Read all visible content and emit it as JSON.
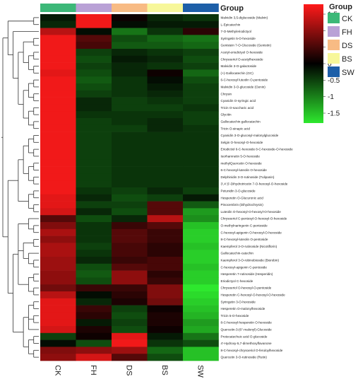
{
  "chart_data": {
    "type": "heatmap",
    "title": "",
    "group_label": "Group",
    "columns": [
      "CK",
      "FH",
      "DS",
      "BS",
      "SW"
    ],
    "group_legend": [
      {
        "name": "CK",
        "color": "#3cb878"
      },
      {
        "name": "FH",
        "color": "#b9a1d6"
      },
      {
        "name": "DS",
        "color": "#f8bb84"
      },
      {
        "name": "BS",
        "color": "#f7f79a"
      },
      {
        "name": "SW",
        "color": "#1d5fa8"
      }
    ],
    "color_scale": {
      "ticks": [
        1.5,
        1,
        0.5,
        0,
        -0.5,
        -1,
        -1.5
      ],
      "range": [
        -1.8,
        1.8
      ],
      "low_color": "#2ee82e",
      "mid_color": "#000000",
      "high_color": "#ff1a1a"
    },
    "rows": [
      {
        "label": "Malvidin 3,5-diglucoside (Malvin)",
        "values": [
          -0.2,
          1.7,
          0.1,
          -0.3,
          -0.4
        ]
      },
      {
        "label": "L-Epicatechin",
        "values": [
          -0.3,
          1.7,
          -0.1,
          -0.2,
          -0.2
        ]
      },
      {
        "label": "7-O-Methyleriodictyol",
        "values": [
          1.3,
          -0.1,
          -0.9,
          -0.4,
          0.3
        ]
      },
      {
        "label": "Syringetin 5-O-hexoside",
        "values": [
          1.7,
          0.6,
          -0.6,
          -0.8,
          -0.9
        ]
      },
      {
        "label": "Genistein 7-O-Glucoside (Genistin)",
        "values": [
          1.7,
          0.5,
          -0.7,
          -0.7,
          -0.8
        ]
      },
      {
        "label": "Acetyl-eriodictyol O-hexoside",
        "values": [
          1.7,
          -0.5,
          -0.3,
          -0.4,
          -0.5
        ]
      },
      {
        "label": "Chrysoeriol O-acetylhexoside",
        "values": [
          1.7,
          -0.6,
          -0.2,
          -0.3,
          -0.6
        ]
      },
      {
        "label": "Malvidin 3-O-galactoside",
        "values": [
          1.7,
          -0.5,
          -0.3,
          -0.4,
          -0.5
        ]
      },
      {
        "label": "(+)-Gallocatechin (GC)",
        "values": [
          1.6,
          -0.6,
          -0.3,
          0.1,
          -0.8
        ]
      },
      {
        "label": "6-C-hexosyl luteolin O-pentoside",
        "values": [
          1.7,
          -0.7,
          -0.4,
          -0.1,
          -0.6
        ]
      },
      {
        "label": "Malvidin 3-O-glucoside (Oenin)",
        "values": [
          1.7,
          -0.6,
          -0.4,
          -0.2,
          -0.5
        ]
      },
      {
        "label": "Chrysin",
        "values": [
          1.7,
          -0.5,
          -0.4,
          -0.3,
          -0.5
        ]
      },
      {
        "label": "Cyanidin O-syringic acid",
        "values": [
          1.7,
          -0.3,
          -0.5,
          -0.4,
          -0.5
        ]
      },
      {
        "label": "Tricin O-saccharic acid",
        "values": [
          1.7,
          -0.3,
          -0.5,
          -0.5,
          -0.4
        ]
      },
      {
        "label": "Glycitin",
        "values": [
          1.7,
          -0.4,
          -0.4,
          -0.4,
          -0.5
        ]
      },
      {
        "label": "Gallocatechin-gallocatechin",
        "values": [
          1.7,
          -0.5,
          -0.4,
          -0.3,
          -0.5
        ]
      },
      {
        "label": "Tricin O-sinapic acid",
        "values": [
          1.7,
          -0.5,
          -0.5,
          -0.3,
          -0.4
        ]
      },
      {
        "label": "Cyanidin 3-O-glucosyl-malonylglucoside",
        "values": [
          1.7,
          -0.5,
          -0.4,
          -0.4,
          -0.4
        ]
      },
      {
        "label": "Selgin O-hexosyl-O-hexoside",
        "values": [
          1.7,
          -0.5,
          -0.4,
          -0.4,
          -0.4
        ]
      },
      {
        "label": "Eriodictiol 6-C-hexoside 8-C-hexoside-O-hexoside",
        "values": [
          1.7,
          -0.5,
          -0.4,
          -0.4,
          -0.4
        ]
      },
      {
        "label": "Isorhamnetin 5-O-hexoside",
        "values": [
          1.7,
          -0.5,
          -0.4,
          -0.4,
          -0.4
        ]
      },
      {
        "label": "methylQuercetin O-hexoside",
        "values": [
          1.7,
          -0.5,
          -0.4,
          -0.4,
          -0.4
        ]
      },
      {
        "label": "6-C-hexosyl-luteolin O-hexoside",
        "values": [
          1.7,
          -0.5,
          -0.4,
          -0.4,
          -0.4
        ]
      },
      {
        "label": "Delphinidin 3-O-rutinoside (Tulipanin)",
        "values": [
          1.7,
          -0.5,
          -0.4,
          -0.4,
          -0.4
        ]
      },
      {
        "label": "3',4',5'-Dihydrotricetin 7-O-hexosyl-O-hexoside",
        "values": [
          1.7,
          -0.5,
          -0.4,
          -0.4,
          -0.4
        ]
      },
      {
        "label": "Petunidin 3-O-glucoside",
        "values": [
          1.7,
          -0.4,
          -0.5,
          -0.3,
          -0.5
        ]
      },
      {
        "label": "Hesperetin O-Glucuronic acid",
        "values": [
          1.6,
          -0.3,
          -0.6,
          -0.5,
          -0.2
        ]
      },
      {
        "label": "Pinocembrin (Dihydrochrysin)",
        "values": [
          1.6,
          -0.5,
          -0.5,
          0.6,
          -0.7
        ]
      },
      {
        "label": "Luteolin O-hexosyl-O-hexosyl-O-hexoside",
        "values": [
          1.5,
          -0.3,
          -0.6,
          0.6,
          -1.2
        ]
      },
      {
        "label": "Chrysoeriol C-pentosyl-O-hexosyl-O-hexoside",
        "values": [
          0.6,
          -0.6,
          -0.3,
          1.3,
          -1.1
        ]
      },
      {
        "label": "O-methylnaringenin C-pentoside",
        "values": [
          0.9,
          -0.4,
          0.4,
          0.6,
          -1.5
        ]
      },
      {
        "label": "C-hexosyl-apigenin O-hexosyl-O-hexoside",
        "values": [
          1.2,
          -0.4,
          0.6,
          0.4,
          -1.6
        ]
      },
      {
        "label": "8-C-hexosyl-luteolin O-pentoside",
        "values": [
          1.0,
          -0.4,
          0.6,
          0.4,
          -1.6
        ]
      },
      {
        "label": "Kaempferol 3-O-rutinoside (Nicotiflorin)",
        "values": [
          1.2,
          -0.5,
          0.5,
          0.3,
          -1.5
        ]
      },
      {
        "label": "Gallocatechin-catechin",
        "values": [
          1.2,
          -0.4,
          0.5,
          0.3,
          -1.6
        ]
      },
      {
        "label": "Kaempferol 3-O-robinobioside (Biorobin)",
        "values": [
          1.1,
          -0.3,
          0.4,
          0.5,
          -1.6
        ]
      },
      {
        "label": "C-hexosyl-apigenin C-pentoside",
        "values": [
          1.1,
          -0.6,
          0.6,
          0.5,
          -1.5
        ]
      },
      {
        "label": "Hesperetin 7-rutinoside (Hesperidin)",
        "values": [
          1.0,
          -0.7,
          1.0,
          0.3,
          -1.6
        ]
      },
      {
        "label": "Eriodictyol C-hexoside",
        "values": [
          1.0,
          -0.6,
          1.0,
          0.4,
          -1.6
        ]
      },
      {
        "label": "Chrysoeriol O-hexosyl-O-pentoside",
        "values": [
          0.8,
          0.4,
          0.4,
          0.9,
          -1.8
        ]
      },
      {
        "label": "Hesperetin C-hexosyl-O-hexosyl-O-hexoside",
        "values": [
          1.3,
          -0.1,
          0.3,
          0.9,
          -1.7
        ]
      },
      {
        "label": "Syringetin 3-O-hexoside",
        "values": [
          1.6,
          -0.3,
          0.2,
          0.8,
          -1.6
        ]
      },
      {
        "label": "Hesperetin O-malonylhexoside",
        "values": [
          1.6,
          0.4,
          -0.5,
          0.1,
          -1.5
        ]
      },
      {
        "label": "Tricin 5-O-hexoside",
        "values": [
          1.6,
          0.3,
          -0.6,
          0.2,
          -1.4
        ]
      },
      {
        "label": "8-C-hexosyl-hesperetin O-hexoside",
        "values": [
          1.6,
          -0.2,
          -0.5,
          0.2,
          -1.2
        ]
      },
      {
        "label": "Quercetin-3-(6''-malonyl)-Glucoside",
        "values": [
          1.5,
          0.2,
          -0.6,
          0.1,
          -1.3
        ]
      },
      {
        "label": "Protocatechuic acid O-glucoside",
        "values": [
          -0.5,
          0.1,
          1.6,
          -0.2,
          -0.9
        ]
      },
      {
        "label": "4'-Hydroxy-5,7-dimethoxyflavanone",
        "values": [
          -0.1,
          -0.6,
          1.7,
          -0.4,
          -0.6
        ]
      },
      {
        "label": "8-C-hexosyl-chrysoeriol O-feruloylhexoside",
        "values": [
          0.9,
          1.0,
          1.1,
          -0.8,
          -1.5
        ]
      },
      {
        "label": "Quercetin 3-O-rutinoside (Rutin)",
        "values": [
          1.0,
          1.5,
          0.6,
          -0.6,
          -1.5
        ]
      }
    ]
  }
}
